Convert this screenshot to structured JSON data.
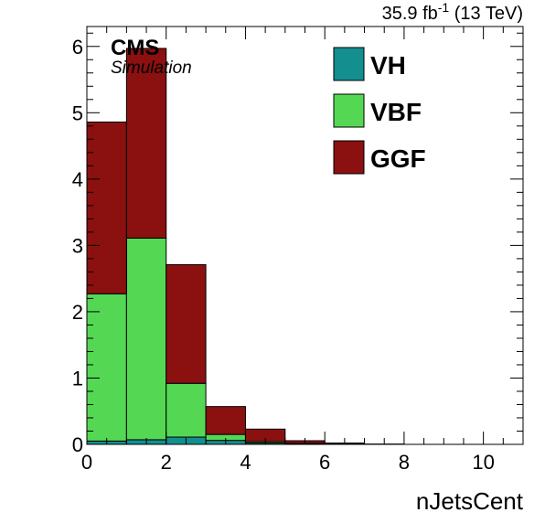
{
  "chart_data": {
    "type": "bar",
    "stacked": true,
    "histogram": true,
    "bin_edges": [
      0,
      1,
      2,
      3,
      4,
      5,
      6,
      7,
      8,
      9,
      10,
      11
    ],
    "series": [
      {
        "name": "VH",
        "color": "#138f8f",
        "values": [
          0.05,
          0.07,
          0.11,
          0.06,
          0.02,
          0.01,
          0.005,
          0.0,
          0.0,
          0.0,
          0.0
        ]
      },
      {
        "name": "VBF",
        "color": "#54d854",
        "values": [
          2.22,
          3.04,
          0.81,
          0.09,
          0.02,
          0.005,
          0.0,
          0.0,
          0.0,
          0.0,
          0.0
        ]
      },
      {
        "name": "GGF",
        "color": "#8b1010",
        "values": [
          2.59,
          2.86,
          1.79,
          0.42,
          0.19,
          0.04,
          0.015,
          0.005,
          0.0,
          0.0,
          0.0
        ]
      }
    ],
    "xlabel": "nJetsCent",
    "ylabel": "",
    "xlim": [
      0,
      11
    ],
    "ylim": [
      0,
      6.3
    ],
    "xticks": [
      0,
      2,
      4,
      6,
      8,
      10
    ],
    "yticks": [
      0,
      1,
      2,
      3,
      4,
      5,
      6
    ],
    "grid": false,
    "legend_position": "top-right",
    "legend_order": [
      "VH",
      "VBF",
      "GGF"
    ]
  },
  "header": {
    "cms": "CMS",
    "simulation": "Simulation",
    "lumi_prefix": "35.9 fb",
    "lumi_exp": "-1",
    "lumi_suffix": " (13 TeV)"
  }
}
